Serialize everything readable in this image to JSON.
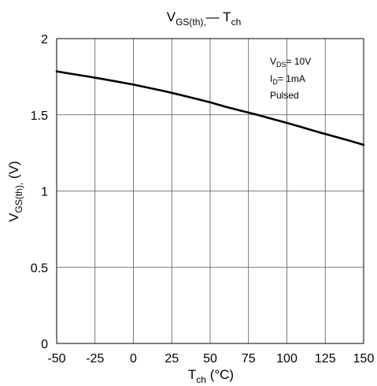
{
  "chart_data": {
    "type": "line",
    "title": {
      "main": "V",
      "sub": "GS(th),",
      "rest": "— T",
      "sub2": "ch"
    },
    "xlabel": {
      "main": "T",
      "sub": "ch",
      "rest": " (°C)"
    },
    "ylabel": {
      "main": "V",
      "sub": "GS(th),",
      "rest": " (V)"
    },
    "xlim": [
      -50,
      150
    ],
    "ylim": [
      0,
      2
    ],
    "x_ticks": [
      "-50",
      "-25",
      "0",
      "25",
      "50",
      "75",
      "100",
      "125",
      "150"
    ],
    "x_tick_values": [
      -50,
      -25,
      0,
      25,
      50,
      75,
      100,
      125,
      150
    ],
    "y_ticks": [
      "0",
      "0.5",
      "1",
      "1.5",
      "2"
    ],
    "y_tick_values": [
      0,
      0.5,
      1,
      1.5,
      2
    ],
    "grid": true,
    "annotations": [
      {
        "main": "V",
        "sub": "DS",
        "rest": "= 10V"
      },
      {
        "main": "I",
        "sub": "D",
        "rest": "= 1mA"
      },
      {
        "main": "Pulsed",
        "sub": "",
        "rest": ""
      }
    ],
    "series": [
      {
        "color": "#000000",
        "x": [
          -50,
          -40,
          -30,
          -20,
          -10,
          0,
          10,
          20,
          30,
          40,
          50,
          60,
          70,
          80,
          90,
          100,
          110,
          120,
          130,
          140,
          150
        ],
        "y": [
          1.785,
          1.768,
          1.752,
          1.735,
          1.717,
          1.698,
          1.677,
          1.656,
          1.632,
          1.607,
          1.582,
          1.553,
          1.527,
          1.502,
          1.474,
          1.447,
          1.418,
          1.388,
          1.36,
          1.333,
          1.303
        ]
      }
    ]
  }
}
